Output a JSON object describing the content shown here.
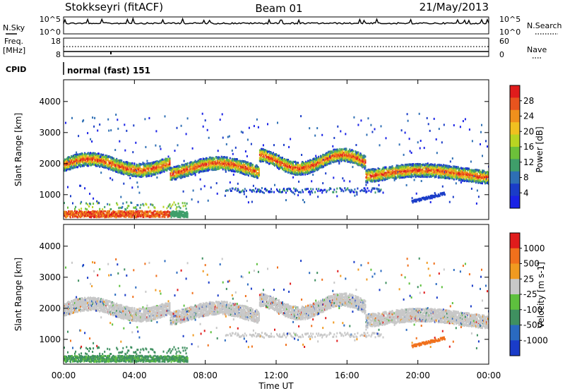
{
  "header": {
    "station": "Stokkseyri (fitACF)",
    "beam": "Beam 01",
    "date": "21/May/2013"
  },
  "nsky_panel": {
    "left_label": "N.Sky",
    "right_label": "N.Search",
    "left_ticks": [
      "10^5",
      "10^0"
    ],
    "right_ticks": [
      "10^5",
      "10^0"
    ]
  },
  "freq_panel": {
    "left_label_line1": "Freq.",
    "left_label_line2": "[MHz]",
    "right_label": "Nave",
    "left_ticks": [
      "18",
      "8"
    ],
    "right_ticks": [
      "60",
      "0"
    ]
  },
  "cpid_panel": {
    "label": "CPID",
    "program": "normal (fast) 151"
  },
  "power_colorbar": {
    "label": "Power [dB]",
    "ticks": [
      "28",
      "24",
      "20",
      "16",
      "12",
      "8",
      "4"
    ],
    "colors": [
      "#1a22e6",
      "#1a3cc8",
      "#2e6fb4",
      "#3f9e6a",
      "#6cc03a",
      "#b8d422",
      "#f0c020",
      "#f0901c",
      "#e8541e",
      "#e01c1c"
    ]
  },
  "velocity_colorbar": {
    "label": "Velocity [m s-1]",
    "ticks": [
      "1000",
      "500",
      "25",
      "-25",
      "-100",
      "-500",
      "-1000"
    ],
    "colors": [
      "#1a3cc8",
      "#2a6ac0",
      "#3f9060",
      "#5ec03e",
      "#c8c8c8",
      "#f09a20",
      "#f0701c",
      "#e01c1c"
    ]
  },
  "chart_data": [
    {
      "type": "heatmap",
      "name": "power",
      "ylabel": "Slant Range [km]",
      "y_ticks": [
        1000,
        2000,
        3000,
        4000
      ],
      "ylim": [
        200,
        4700
      ],
      "xlim": [
        0,
        24
      ],
      "x_ticks": [
        "00:00",
        "04:00",
        "08:00",
        "12:00",
        "16:00",
        "20:00",
        "00:00"
      ],
      "bands": [
        {
          "t0": 0,
          "t1": 24,
          "r0": 1800,
          "r1": 2100
        },
        {
          "t0": 0,
          "t1": 6,
          "r0": 250,
          "r1": 400
        }
      ]
    },
    {
      "type": "heatmap",
      "name": "velocity",
      "ylabel": "Slant Range [km]",
      "xlabel": "Time UT",
      "y_ticks": [
        1000,
        2000,
        3000,
        4000
      ],
      "ylim": [
        200,
        4700
      ],
      "xlim": [
        0,
        24
      ],
      "x_ticks": [
        "00:00",
        "04:00",
        "08:00",
        "12:00",
        "16:00",
        "20:00",
        "00:00"
      ]
    }
  ]
}
